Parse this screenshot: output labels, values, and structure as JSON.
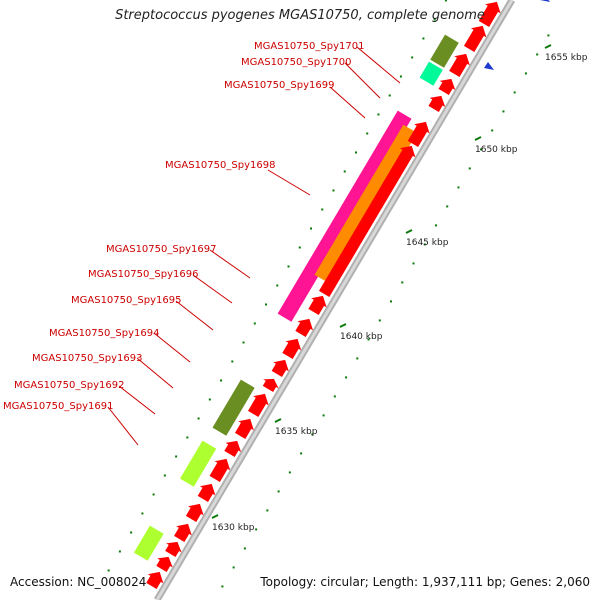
{
  "title": "Streptococcus pyogenes MGAS10750, complete genome",
  "accession": "Accession: NC_008024",
  "summary": "Topology: circular; Length: 1,937,111 bp; Genes: 2,060",
  "colors": {
    "cds": "#ff0000",
    "cog_green": "#6b8e23",
    "cog_lime": "#adff2f",
    "cog_mint": "#00fa9a",
    "cog_magenta": "#ff1493",
    "cog_orange": "#ff8c00",
    "tick": "#0a7a0a",
    "backbone": "#9a9a9a"
  },
  "gene_labels": [
    "MGAS10750_Spy1701",
    "MGAS10750_Spy1700",
    "MGAS10750_Spy1699",
    "MGAS10750_Spy1698",
    "MGAS10750_Spy1697",
    "MGAS10750_Spy1696",
    "MGAS10750_Spy1695",
    "MGAS10750_Spy1694",
    "MGAS10750_Spy1693",
    "MGAS10750_Spy1692",
    "MGAS10750_Spy1691"
  ],
  "kbp_labels": [
    "1655 kbp",
    "1650 kbp",
    "1645 kbp",
    "1640 kbp",
    "1635 kbp",
    "1630 kbp"
  ]
}
